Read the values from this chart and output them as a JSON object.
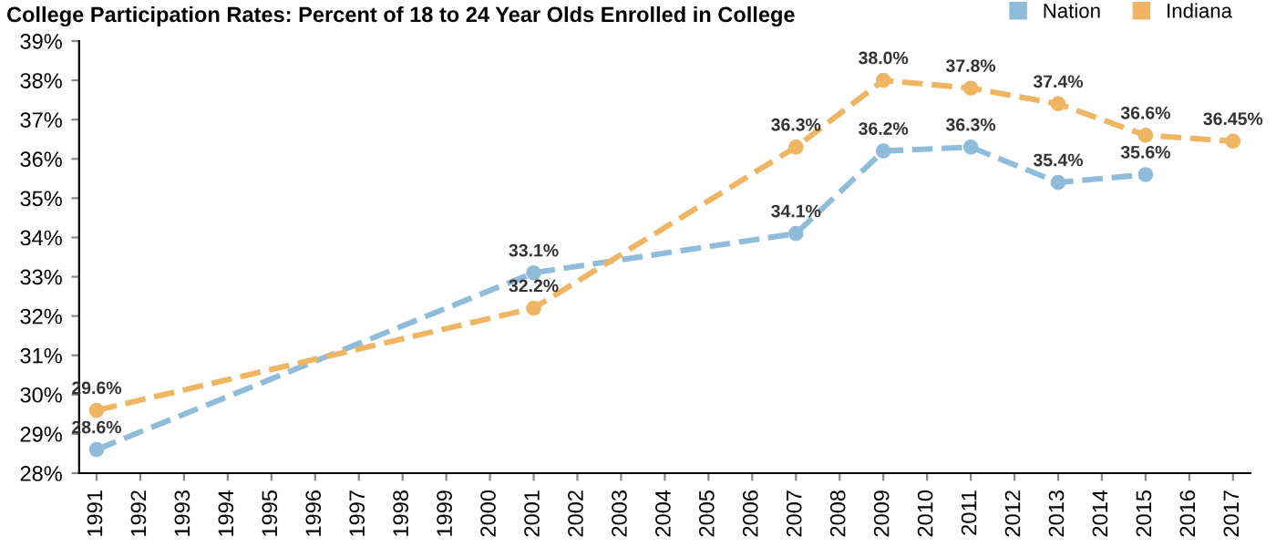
{
  "chart_data": {
    "type": "line",
    "title": "College Participation Rates: Percent of 18 to 24 Year Olds Enrolled in College",
    "xlim": [
      1990.6,
      2017.4
    ],
    "xticks": [
      1991,
      1992,
      1993,
      1994,
      1995,
      1996,
      1997,
      1998,
      1999,
      2000,
      2001,
      2002,
      2003,
      2004,
      2005,
      2006,
      2007,
      2008,
      2009,
      2010,
      2011,
      2012,
      2013,
      2014,
      2015,
      2016,
      2017
    ],
    "ylim": [
      28,
      39
    ],
    "yticks": [
      {
        "value": 28,
        "label": "28%"
      },
      {
        "value": 29,
        "label": "29%"
      },
      {
        "value": 30,
        "label": "30%"
      },
      {
        "value": 31,
        "label": "31%"
      },
      {
        "value": 32,
        "label": "32%"
      },
      {
        "value": 33,
        "label": "33%"
      },
      {
        "value": 34,
        "label": "34%"
      },
      {
        "value": 35,
        "label": "35%"
      },
      {
        "value": 36,
        "label": "36%"
      },
      {
        "value": 37,
        "label": "37%"
      },
      {
        "value": 38,
        "label": "38%"
      },
      {
        "value": 39,
        "label": "39%"
      }
    ],
    "series": [
      {
        "name": "Nation",
        "color": "#8fbcdb",
        "x": [
          1991,
          2001,
          2007,
          2009,
          2011,
          2013,
          2015
        ],
        "values": [
          28.6,
          33.1,
          34.1,
          36.2,
          36.3,
          35.4,
          35.6
        ],
        "value_labels": [
          "28.6%",
          "33.1%",
          "34.1%",
          "36.2%",
          "36.3%",
          "35.4%",
          "35.6%"
        ]
      },
      {
        "name": "Indiana",
        "color": "#f0b562",
        "x": [
          1991,
          2001,
          2007,
          2009,
          2011,
          2013,
          2015,
          2017
        ],
        "values": [
          29.6,
          32.2,
          36.3,
          38.0,
          37.8,
          37.4,
          36.6,
          36.45
        ],
        "value_labels": [
          "29.6%",
          "32.2%",
          "36.3%",
          "38.0%",
          "37.8%",
          "37.4%",
          "36.6%",
          "36.45%"
        ]
      }
    ],
    "marker": "circle",
    "line_style": "dashed",
    "legend": "top right",
    "grid": false
  }
}
